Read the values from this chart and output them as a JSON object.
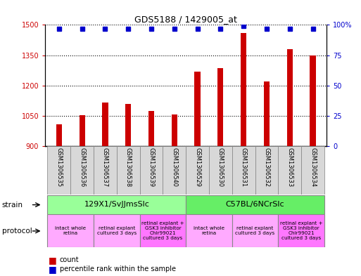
{
  "title": "GDS5188 / 1429005_at",
  "samples": [
    "GSM1306535",
    "GSM1306536",
    "GSM1306537",
    "GSM1306538",
    "GSM1306539",
    "GSM1306540",
    "GSM1306529",
    "GSM1306530",
    "GSM1306531",
    "GSM1306532",
    "GSM1306533",
    "GSM1306534"
  ],
  "counts": [
    1010,
    1055,
    1115,
    1110,
    1075,
    1058,
    1270,
    1285,
    1460,
    1220,
    1380,
    1350
  ],
  "percentiles": [
    97,
    97,
    97,
    97,
    97,
    97,
    97,
    97,
    99,
    97,
    97,
    97
  ],
  "ylim_left": [
    900,
    1500
  ],
  "ylim_right": [
    0,
    100
  ],
  "yticks_left": [
    900,
    1050,
    1200,
    1350,
    1500
  ],
  "yticks_right": [
    0,
    25,
    50,
    75,
    100
  ],
  "bar_color": "#cc0000",
  "dot_color": "#0000cc",
  "strain_groups": [
    {
      "label": "129X1/SvJJmsSlc",
      "start": 0,
      "end": 5,
      "color": "#99ff99"
    },
    {
      "label": "C57BL/6NCrSlc",
      "start": 6,
      "end": 11,
      "color": "#66ee66"
    }
  ],
  "protocol_groups": [
    {
      "label": "intact whole\nretina",
      "start": 0,
      "end": 1,
      "color": "#ffaaff"
    },
    {
      "label": "retinal explant\ncultured 3 days",
      "start": 2,
      "end": 3,
      "color": "#ffaaff"
    },
    {
      "label": "retinal explant +\nGSK3 inhibitor\nChir99021\ncultured 3 days",
      "start": 4,
      "end": 5,
      "color": "#ff77ff"
    },
    {
      "label": "intact whole\nretina",
      "start": 6,
      "end": 7,
      "color": "#ffaaff"
    },
    {
      "label": "retinal explant\ncultured 3 days",
      "start": 8,
      "end": 9,
      "color": "#ffaaff"
    },
    {
      "label": "retinal explant +\nGSK3 inhibitor\nChir99021\ncultured 3 days",
      "start": 10,
      "end": 11,
      "color": "#ff77ff"
    }
  ],
  "background_color": "#ffffff"
}
